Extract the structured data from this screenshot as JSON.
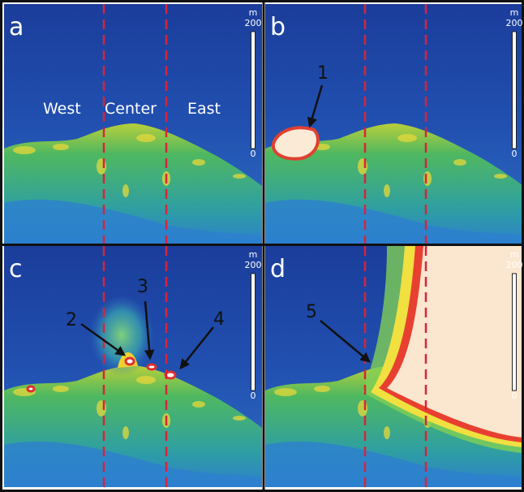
{
  "panels": [
    {
      "letter": "a",
      "scale": {
        "unit": "m",
        "max": "200",
        "min": "0"
      },
      "labels": [
        "West",
        "Center",
        "East"
      ]
    },
    {
      "letter": "b",
      "scale": {
        "unit": "m",
        "max": "200",
        "min": "0"
      },
      "labels": [
        "1"
      ]
    },
    {
      "letter": "c",
      "scale": {
        "unit": "m",
        "max": "200",
        "min": "0"
      },
      "labels": [
        "2",
        "3",
        "4"
      ]
    },
    {
      "letter": "d",
      "scale": {
        "unit": "m",
        "max": "200",
        "min": "0"
      },
      "labels": [
        "5"
      ]
    }
  ]
}
